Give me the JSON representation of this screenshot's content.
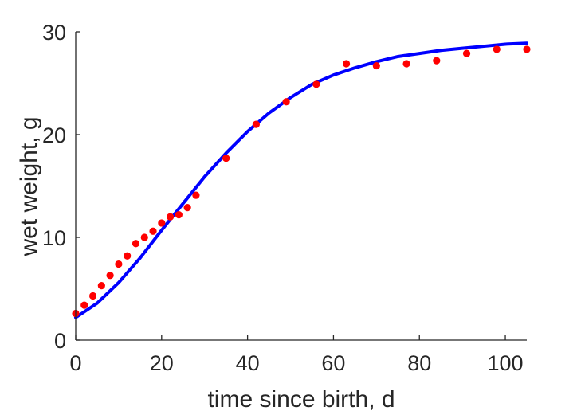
{
  "chart_data": {
    "type": "scatter",
    "xlabel": "time since birth, d",
    "ylabel": "wet weight, g",
    "xlim": [
      0,
      105
    ],
    "ylim": [
      0,
      30
    ],
    "xticks": [
      0,
      20,
      40,
      60,
      80,
      100
    ],
    "yticks": [
      0,
      10,
      20,
      30
    ],
    "grid": false,
    "colors": {
      "points": "#ff0000",
      "fit": "#0000ff",
      "axes": "#262626"
    },
    "series": [
      {
        "kind": "points",
        "x": [
          0,
          2,
          4,
          6,
          8,
          10,
          12,
          14,
          16,
          18,
          20,
          22,
          24,
          26,
          28,
          35,
          42,
          49,
          56,
          63,
          70,
          77,
          84,
          91,
          98,
          105
        ],
        "y": [
          2.6,
          3.4,
          4.3,
          5.3,
          6.3,
          7.4,
          8.2,
          9.4,
          10.0,
          10.6,
          11.4,
          12.0,
          12.2,
          12.9,
          14.1,
          17.7,
          21.0,
          23.2,
          24.9,
          26.9,
          26.7,
          26.9,
          27.2,
          27.9,
          28.3,
          28.3
        ]
      },
      {
        "kind": "line",
        "x": [
          0,
          5,
          10,
          15,
          20,
          25,
          30,
          35,
          40,
          45,
          50,
          55,
          60,
          65,
          70,
          75,
          80,
          85,
          90,
          95,
          100,
          105
        ],
        "y": [
          2.2,
          3.6,
          5.6,
          8.0,
          10.7,
          13.3,
          15.9,
          18.2,
          20.3,
          22.1,
          23.6,
          24.9,
          25.8,
          26.5,
          27.1,
          27.6,
          27.9,
          28.2,
          28.4,
          28.6,
          28.8,
          28.9
        ]
      }
    ]
  }
}
